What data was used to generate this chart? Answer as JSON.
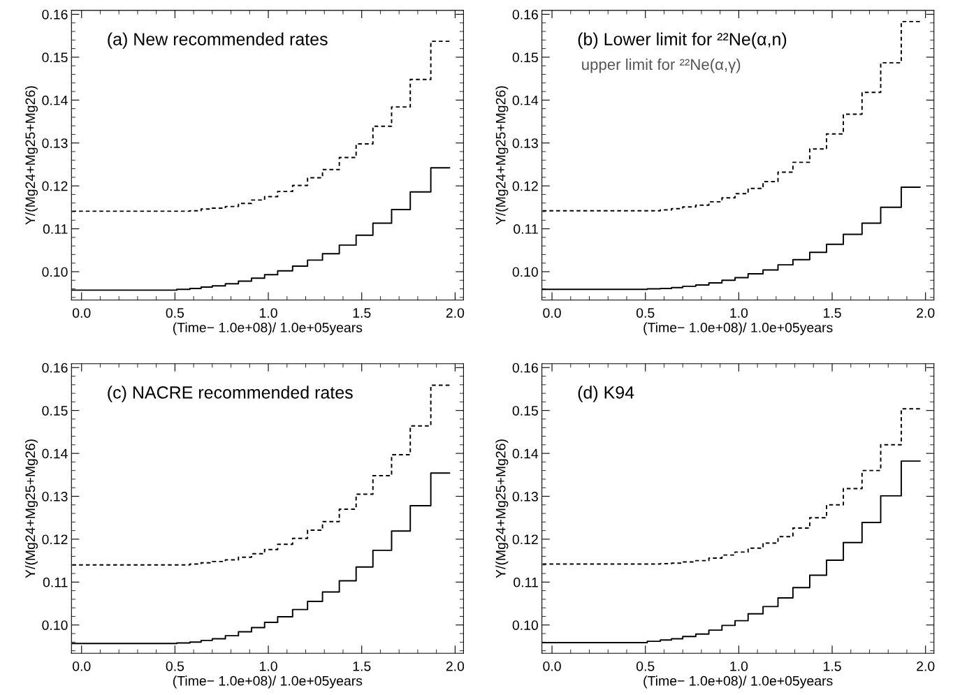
{
  "chart_data": [
    {
      "type": "step",
      "annotations": [
        "(a) New recommended rates"
      ],
      "xlabel": "(Time− 1.0e+08)/ 1.0e+05years",
      "ylabel": "Y/(Mg24+Mg25+Mg26)",
      "x": [
        -0.05,
        0.51,
        0.58,
        0.64,
        0.7,
        0.77,
        0.84,
        0.91,
        0.98,
        1.05,
        1.13,
        1.21,
        1.29,
        1.38,
        1.47,
        1.56,
        1.66,
        1.76,
        1.87,
        1.97
      ],
      "series": [
        {
          "color": "#000000",
          "line_style": "solid",
          "values": [
            0.0957,
            0.0959,
            0.0961,
            0.0964,
            0.0967,
            0.0972,
            0.0978,
            0.0985,
            0.0993,
            0.1002,
            0.1013,
            0.1027,
            0.1042,
            0.1062,
            0.1085,
            0.1113,
            0.1145,
            0.1186,
            0.1242,
            0.1242
          ]
        },
        {
          "color": "#000000",
          "line_style": "dashed",
          "values": [
            0.1141,
            0.1141,
            0.1142,
            0.1146,
            0.1148,
            0.1152,
            0.1159,
            0.1167,
            0.1175,
            0.1187,
            0.1201,
            0.1219,
            0.1238,
            0.1266,
            0.1298,
            0.1339,
            0.1384,
            0.1448,
            0.1537,
            0.1537
          ]
        }
      ],
      "xlim": [
        -0.054,
        2.045
      ],
      "ylim": [
        0.0934,
        0.1609
      ],
      "xticks": [
        {
          "value": 0,
          "label": "0.0"
        },
        {
          "value": 0.5,
          "label": "0.5"
        },
        {
          "value": 1,
          "label": "1.0"
        },
        {
          "value": 1.5,
          "label": "1.5"
        },
        {
          "value": 2,
          "label": "2.0"
        }
      ],
      "yticks": [
        {
          "value": 0.1,
          "label": "0.10"
        },
        {
          "value": 0.11,
          "label": "0.11"
        },
        {
          "value": 0.12,
          "label": "0.12"
        },
        {
          "value": 0.13,
          "label": "0.13"
        },
        {
          "value": 0.14,
          "label": "0.14"
        },
        {
          "value": 0.15,
          "label": "0.15"
        },
        {
          "value": 0.16,
          "label": "0.16"
        }
      ],
      "marker": "none",
      "grid": false,
      "legend": false
    },
    {
      "type": "step",
      "annotations": [
        "(b) Lower limit for ²²Ne(α,n)",
        "upper limit for ²²Ne(α,γ)"
      ],
      "xlabel": "(Time− 1.0e+08)/ 1.0e+05years",
      "ylabel": "Y/(Mg24+Mg25+Mg26)",
      "x": [
        -0.05,
        0.51,
        0.58,
        0.64,
        0.7,
        0.77,
        0.84,
        0.91,
        0.98,
        1.05,
        1.13,
        1.21,
        1.29,
        1.38,
        1.47,
        1.56,
        1.66,
        1.76,
        1.87,
        1.97
      ],
      "series": [
        {
          "color": "#000000",
          "line_style": "solid",
          "values": [
            0.0959,
            0.096,
            0.0961,
            0.0963,
            0.0966,
            0.0969,
            0.0974,
            0.098,
            0.0986,
            0.0995,
            0.1004,
            0.1016,
            0.1028,
            0.1045,
            0.1064,
            0.1087,
            0.1113,
            0.115,
            0.1197,
            0.1197
          ]
        },
        {
          "color": "#000000",
          "line_style": "dashed",
          "values": [
            0.1142,
            0.1142,
            0.1144,
            0.1147,
            0.1151,
            0.1155,
            0.1163,
            0.1172,
            0.1182,
            0.1194,
            0.121,
            0.1232,
            0.1255,
            0.1286,
            0.1321,
            0.1367,
            0.1418,
            0.1487,
            0.1583,
            0.1583
          ]
        }
      ],
      "xlim": [
        -0.054,
        2.045
      ],
      "ylim": [
        0.0934,
        0.1609
      ],
      "xticks": [
        {
          "value": 0,
          "label": "0.0"
        },
        {
          "value": 0.5,
          "label": "0.5"
        },
        {
          "value": 1,
          "label": "1.0"
        },
        {
          "value": 1.5,
          "label": "1.5"
        },
        {
          "value": 2,
          "label": "2.0"
        }
      ],
      "yticks": [
        {
          "value": 0.1,
          "label": "0.10"
        },
        {
          "value": 0.11,
          "label": "0.11"
        },
        {
          "value": 0.12,
          "label": "0.12"
        },
        {
          "value": 0.13,
          "label": "0.13"
        },
        {
          "value": 0.14,
          "label": "0.14"
        },
        {
          "value": 0.15,
          "label": "0.15"
        },
        {
          "value": 0.16,
          "label": "0.16"
        }
      ],
      "marker": "none",
      "grid": false,
      "legend": false
    },
    {
      "type": "step",
      "annotations": [
        "(c) NACRE recommended rates"
      ],
      "xlabel": "(Time− 1.0e+08)/ 1.0e+05years",
      "ylabel": "Y/(Mg24+Mg25+Mg26)",
      "x": [
        -0.05,
        0.51,
        0.58,
        0.64,
        0.7,
        0.77,
        0.84,
        0.91,
        0.98,
        1.05,
        1.13,
        1.21,
        1.29,
        1.38,
        1.47,
        1.56,
        1.66,
        1.76,
        1.87,
        1.97
      ],
      "series": [
        {
          "color": "#000000",
          "line_style": "solid",
          "values": [
            0.0957,
            0.0958,
            0.096,
            0.0964,
            0.0968,
            0.0975,
            0.0984,
            0.0994,
            0.1006,
            0.1019,
            0.1036,
            0.1055,
            0.1077,
            0.1103,
            0.1135,
            0.1174,
            0.1219,
            0.1278,
            0.1354,
            0.1354
          ]
        },
        {
          "color": "#000000",
          "line_style": "dashed",
          "values": [
            0.114,
            0.114,
            0.1142,
            0.1145,
            0.1148,
            0.1152,
            0.1158,
            0.1166,
            0.1176,
            0.1188,
            0.1202,
            0.1221,
            0.1241,
            0.127,
            0.1305,
            0.1348,
            0.1397,
            0.1464,
            0.1559,
            0.1559
          ]
        }
      ],
      "xlim": [
        -0.054,
        2.045
      ],
      "ylim": [
        0.0934,
        0.1609
      ],
      "xticks": [
        {
          "value": 0,
          "label": "0.0"
        },
        {
          "value": 0.5,
          "label": "0.5"
        },
        {
          "value": 1,
          "label": "1.0"
        },
        {
          "value": 1.5,
          "label": "1.5"
        },
        {
          "value": 2,
          "label": "2.0"
        }
      ],
      "yticks": [
        {
          "value": 0.1,
          "label": "0.10"
        },
        {
          "value": 0.11,
          "label": "0.11"
        },
        {
          "value": 0.12,
          "label": "0.12"
        },
        {
          "value": 0.13,
          "label": "0.13"
        },
        {
          "value": 0.14,
          "label": "0.14"
        },
        {
          "value": 0.15,
          "label": "0.15"
        },
        {
          "value": 0.16,
          "label": "0.16"
        }
      ],
      "marker": "none",
      "grid": false,
      "legend": false
    },
    {
      "type": "step",
      "annotations": [
        "(d) K94"
      ],
      "xlabel": "(Time− 1.0e+08)/ 1.0e+05years",
      "ylabel": "Y/(Mg24+Mg25+Mg26)",
      "x": [
        -0.05,
        0.51,
        0.58,
        0.64,
        0.7,
        0.77,
        0.84,
        0.91,
        0.98,
        1.05,
        1.13,
        1.21,
        1.29,
        1.38,
        1.47,
        1.56,
        1.66,
        1.76,
        1.87,
        1.97
      ],
      "series": [
        {
          "color": "#000000",
          "line_style": "solid",
          "values": [
            0.0959,
            0.0962,
            0.0965,
            0.0968,
            0.0973,
            0.0979,
            0.0988,
            0.0999,
            0.101,
            0.1026,
            0.1043,
            0.1063,
            0.1087,
            0.1116,
            0.1151,
            0.1192,
            0.1239,
            0.1301,
            0.1382,
            0.1382
          ]
        },
        {
          "color": "#000000",
          "line_style": "dashed",
          "values": [
            0.1142,
            0.1142,
            0.1143,
            0.1144,
            0.1147,
            0.115,
            0.1156,
            0.1163,
            0.117,
            0.1179,
            0.1191,
            0.1206,
            0.1226,
            0.125,
            0.128,
            0.1318,
            0.136,
            0.142,
            0.1504,
            0.1504
          ]
        }
      ],
      "xlim": [
        -0.054,
        2.045
      ],
      "ylim": [
        0.0934,
        0.1609
      ],
      "xticks": [
        {
          "value": 0,
          "label": "0.0"
        },
        {
          "value": 0.5,
          "label": "0.5"
        },
        {
          "value": 1,
          "label": "1.0"
        },
        {
          "value": 1.5,
          "label": "1.5"
        },
        {
          "value": 2,
          "label": "2.0"
        }
      ],
      "yticks": [
        {
          "value": 0.1,
          "label": "0.10"
        },
        {
          "value": 0.11,
          "label": "0.11"
        },
        {
          "value": 0.12,
          "label": "0.12"
        },
        {
          "value": 0.13,
          "label": "0.13"
        },
        {
          "value": 0.14,
          "label": "0.14"
        },
        {
          "value": 0.15,
          "label": "0.15"
        },
        {
          "value": 0.16,
          "label": "0.16"
        }
      ],
      "marker": "none",
      "grid": false,
      "legend": false
    }
  ]
}
